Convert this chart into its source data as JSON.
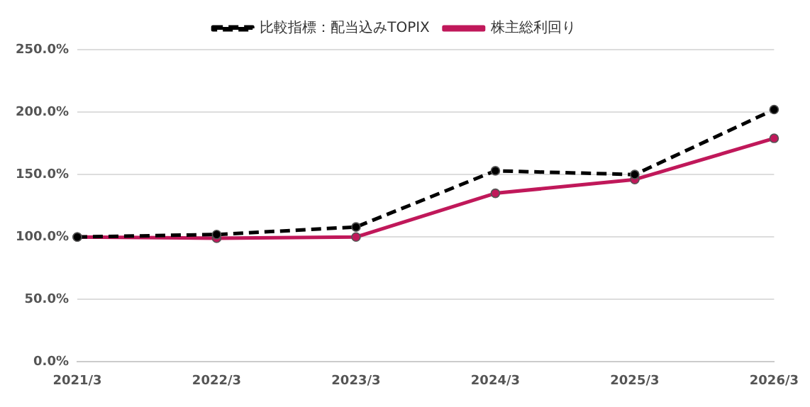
{
  "chart_data": {
    "type": "line",
    "categories": [
      "2021/3",
      "2022/3",
      "2023/3",
      "2024/3",
      "2025/3",
      "2026/3"
    ],
    "series": [
      {
        "name": "株主総利回り",
        "color": "#c0185a",
        "values": [
          100,
          99,
          100,
          135,
          146,
          179
        ],
        "line_style": "solid"
      },
      {
        "name": "比較指標：配当込みTOPIX",
        "color": "#000000",
        "values": [
          100,
          102,
          108,
          153,
          150,
          202
        ],
        "line_style": "dashed"
      }
    ],
    "ylim": [
      0,
      250
    ],
    "yticks": [
      {
        "value": 0,
        "label": "0.0%"
      },
      {
        "value": 50,
        "label": "50.0%"
      },
      {
        "value": 100,
        "label": "100.0%"
      },
      {
        "value": 150,
        "label": "150.0%"
      },
      {
        "value": 200,
        "label": "200.0%"
      },
      {
        "value": 250,
        "label": "250.0%"
      }
    ],
    "grid": "y",
    "legend": "top",
    "marker": "circle"
  }
}
